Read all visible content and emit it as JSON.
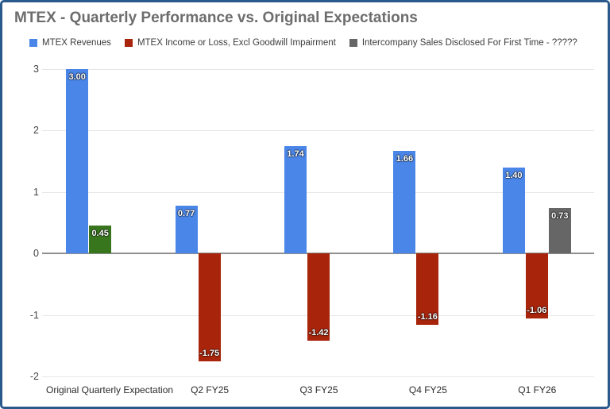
{
  "chart_title": "MTEX - Quarterly Performance vs. Original Expectations",
  "colors": {
    "frame_border": "#2a5a8c",
    "title_text": "#6d6d6d",
    "legend_text": "#3c3c3c",
    "gridline": "#e6e6e6",
    "zero_line": "#8f8f8f",
    "series_blue": "#4a86e8",
    "series_red": "#a8240b",
    "series_gray": "#666666",
    "point_green": "#38761d"
  },
  "chart_data": {
    "type": "bar",
    "title": "MTEX - Quarterly Performance vs. Original Expectations",
    "categories": [
      "Original Quarterly Expectation",
      "Q2 FY25",
      "Q3 FY25",
      "Q4 FY25",
      "Q1 FY26"
    ],
    "series": [
      {
        "name": "MTEX Revenues",
        "color": "#4a86e8",
        "values": [
          3.0,
          0.77,
          1.74,
          1.66,
          1.4
        ],
        "labels": [
          "3.00",
          "0.77",
          "1.74",
          "1.66",
          "1.40"
        ]
      },
      {
        "name": "MTEX Income or Loss, Excl Goodwill Impairment",
        "color": "#a8240b",
        "values": [
          0.45,
          -1.75,
          -1.42,
          -1.16,
          -1.06
        ],
        "labels": [
          "0.45",
          "-1.75",
          "-1.42",
          "-1.16",
          "-1.06"
        ],
        "point_colors": [
          "#38761d",
          null,
          null,
          null,
          null
        ]
      },
      {
        "name": "Intercompany Sales Disclosed For First Time - ?????",
        "color": "#666666",
        "values": [
          null,
          null,
          null,
          null,
          0.73
        ],
        "labels": [
          null,
          null,
          null,
          null,
          "0.73"
        ]
      }
    ],
    "y_ticks": [
      3,
      2,
      1,
      0,
      -1,
      -2
    ],
    "y_tick_labels": [
      "3",
      "2",
      "1",
      "0",
      "-1",
      "-2"
    ],
    "ylim": [
      -2,
      3
    ],
    "grid": true,
    "legend_position": "top",
    "data_labels": true,
    "xlabel": "",
    "ylabel": ""
  }
}
